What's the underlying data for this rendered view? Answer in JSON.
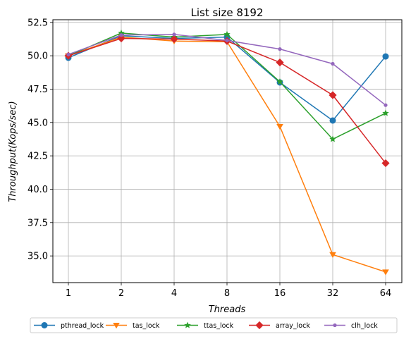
{
  "chart_data": {
    "type": "line",
    "title": "List size 8192",
    "xlabel": "Threads",
    "ylabel": "Throughput(Kops/sec)",
    "categories": [
      "1",
      "2",
      "4",
      "8",
      "16",
      "32",
      "64"
    ],
    "ylim": [
      33.0,
      52.7
    ],
    "yticks": [
      "35.0",
      "37.5",
      "40.0",
      "42.5",
      "45.0",
      "47.5",
      "50.0",
      "52.5"
    ],
    "grid": true,
    "legend_position": "bottom-center",
    "series": [
      {
        "name": "pthread_lock",
        "color": "#1f77b4",
        "marker": "circle",
        "values": [
          49.85,
          51.5,
          51.3,
          51.4,
          48.0,
          45.15,
          49.95
        ]
      },
      {
        "name": "tas_lock",
        "color": "#ff7f0e",
        "marker": "triangle-down",
        "values": [
          50.0,
          51.4,
          51.1,
          51.05,
          44.7,
          35.1,
          33.8
        ]
      },
      {
        "name": "ttas_lock",
        "color": "#2ca02c",
        "marker": "star",
        "values": [
          50.0,
          51.7,
          51.4,
          51.6,
          48.05,
          43.75,
          45.7
        ]
      },
      {
        "name": "array_lock",
        "color": "#d62728",
        "marker": "diamond",
        "values": [
          50.0,
          51.3,
          51.25,
          51.1,
          49.5,
          47.05,
          41.95
        ]
      },
      {
        "name": "clh_lock",
        "color": "#9467bd",
        "marker": "small-circle",
        "values": [
          50.1,
          51.55,
          51.6,
          51.15,
          50.5,
          49.4,
          46.3
        ]
      }
    ]
  }
}
